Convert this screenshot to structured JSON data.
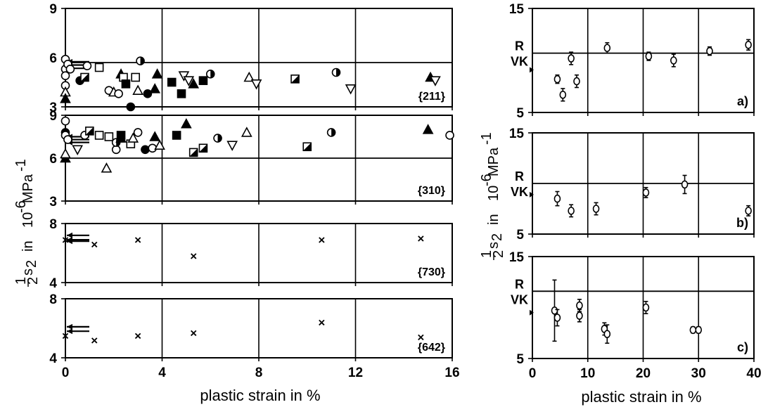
{
  "chart_data": [
    {
      "id": "211",
      "type": "scatter",
      "annotation": "{211}",
      "xlim": [
        0,
        16
      ],
      "ylim": [
        3,
        9
      ],
      "xticks": [
        "0",
        "4",
        "8",
        "12",
        "16"
      ],
      "yticks": [
        "3",
        "6",
        "9"
      ],
      "grid_x": true,
      "ref_line": 5.7,
      "ref_arrows": [
        5.75,
        5.55,
        5.35
      ],
      "points": [
        {
          "x": 0.0,
          "y": 5.9,
          "m": "circle"
        },
        {
          "x": 0.0,
          "y": 5.3,
          "m": "circle"
        },
        {
          "x": 0.0,
          "y": 4.9,
          "m": "circle"
        },
        {
          "x": 0.0,
          "y": 4.3,
          "m": "circle"
        },
        {
          "x": 0.0,
          "y": 3.9,
          "m": "tri-open"
        },
        {
          "x": 0.0,
          "y": 3.5,
          "m": "tri-filled"
        },
        {
          "x": 0.1,
          "y": 5.6,
          "m": "circle"
        },
        {
          "x": 0.2,
          "y": 5.3,
          "m": "circle"
        },
        {
          "x": 0.9,
          "y": 5.5,
          "m": "circle"
        },
        {
          "x": 0.6,
          "y": 4.6,
          "m": "circle-filled"
        },
        {
          "x": 0.8,
          "y": 4.8,
          "m": "sq-half"
        },
        {
          "x": 1.4,
          "y": 5.4,
          "m": "square"
        },
        {
          "x": 1.8,
          "y": 4.0,
          "m": "circle"
        },
        {
          "x": 2.0,
          "y": 3.9,
          "m": "tri-open"
        },
        {
          "x": 2.2,
          "y": 3.8,
          "m": "circle"
        },
        {
          "x": 2.3,
          "y": 5.0,
          "m": "tri-filled"
        },
        {
          "x": 2.4,
          "y": 4.8,
          "m": "square"
        },
        {
          "x": 2.5,
          "y": 4.4,
          "m": "sq-filled"
        },
        {
          "x": 2.7,
          "y": 3.0,
          "m": "circle-filled"
        },
        {
          "x": 2.9,
          "y": 4.8,
          "m": "square"
        },
        {
          "x": 3.0,
          "y": 4.0,
          "m": "tri-open"
        },
        {
          "x": 3.1,
          "y": 5.8,
          "m": "circle-half"
        },
        {
          "x": 3.4,
          "y": 3.8,
          "m": "circle-filled"
        },
        {
          "x": 3.7,
          "y": 4.1,
          "m": "tri-filled"
        },
        {
          "x": 3.8,
          "y": 5.0,
          "m": "tri-filled"
        },
        {
          "x": 4.4,
          "y": 4.5,
          "m": "sq-filled"
        },
        {
          "x": 4.9,
          "y": 4.9,
          "m": "tri-down"
        },
        {
          "x": 4.8,
          "y": 3.8,
          "m": "sq-filled"
        },
        {
          "x": 5.1,
          "y": 4.6,
          "m": "tri-down"
        },
        {
          "x": 5.3,
          "y": 4.4,
          "m": "tri-filled"
        },
        {
          "x": 5.7,
          "y": 4.6,
          "m": "sq-filled"
        },
        {
          "x": 6.0,
          "y": 5.0,
          "m": "circle-half"
        },
        {
          "x": 7.6,
          "y": 4.8,
          "m": "tri-open"
        },
        {
          "x": 7.9,
          "y": 4.4,
          "m": "tri-down"
        },
        {
          "x": 9.5,
          "y": 4.7,
          "m": "sq-half"
        },
        {
          "x": 11.2,
          "y": 5.1,
          "m": "circle-half"
        },
        {
          "x": 11.8,
          "y": 4.1,
          "m": "tri-down"
        },
        {
          "x": 15.1,
          "y": 4.8,
          "m": "tri-filled"
        },
        {
          "x": 15.3,
          "y": 4.6,
          "m": "tri-down"
        }
      ]
    },
    {
      "id": "310",
      "type": "scatter",
      "annotation": "{310}",
      "xlim": [
        0,
        16
      ],
      "ylim": [
        3,
        9
      ],
      "xticks": [
        "0",
        "4",
        "8",
        "12",
        "16"
      ],
      "yticks": [
        "3",
        "6",
        "9"
      ],
      "grid_x": true,
      "ref_line": 6.0,
      "ref_arrows": [
        7.5,
        7.3,
        7.1
      ],
      "points": [
        {
          "x": 0.0,
          "y": 8.6,
          "m": "circle"
        },
        {
          "x": 0.0,
          "y": 7.8,
          "m": "circle-filled"
        },
        {
          "x": 0.0,
          "y": 7.6,
          "m": "circle"
        },
        {
          "x": 0.0,
          "y": 6.0,
          "m": "tri-filled"
        },
        {
          "x": 0.0,
          "y": 6.3,
          "m": "tri-open"
        },
        {
          "x": 0.1,
          "y": 7.3,
          "m": "circle"
        },
        {
          "x": 0.5,
          "y": 6.6,
          "m": "tri-down"
        },
        {
          "x": 0.8,
          "y": 7.6,
          "m": "circle"
        },
        {
          "x": 1.0,
          "y": 7.9,
          "m": "sq-half"
        },
        {
          "x": 1.4,
          "y": 7.6,
          "m": "square"
        },
        {
          "x": 1.7,
          "y": 5.3,
          "m": "tri-open"
        },
        {
          "x": 1.8,
          "y": 7.5,
          "m": "square"
        },
        {
          "x": 2.1,
          "y": 6.6,
          "m": "circle"
        },
        {
          "x": 2.1,
          "y": 7.1,
          "m": "circle-half"
        },
        {
          "x": 2.3,
          "y": 7.4,
          "m": "tri-filled"
        },
        {
          "x": 2.3,
          "y": 7.6,
          "m": "sq-filled"
        },
        {
          "x": 2.7,
          "y": 7.0,
          "m": "square"
        },
        {
          "x": 2.8,
          "y": 7.4,
          "m": "tri-open"
        },
        {
          "x": 3.0,
          "y": 7.8,
          "m": "circle"
        },
        {
          "x": 3.3,
          "y": 6.6,
          "m": "circle-filled"
        },
        {
          "x": 3.6,
          "y": 6.7,
          "m": "circle"
        },
        {
          "x": 3.7,
          "y": 7.5,
          "m": "tri-filled"
        },
        {
          "x": 3.9,
          "y": 6.9,
          "m": "tri-open"
        },
        {
          "x": 4.6,
          "y": 7.6,
          "m": "sq-filled"
        },
        {
          "x": 5.0,
          "y": 8.4,
          "m": "tri-filled"
        },
        {
          "x": 5.3,
          "y": 6.4,
          "m": "sq-half"
        },
        {
          "x": 5.7,
          "y": 6.7,
          "m": "sq-half"
        },
        {
          "x": 6.3,
          "y": 7.4,
          "m": "circle-half"
        },
        {
          "x": 6.9,
          "y": 6.9,
          "m": "tri-down"
        },
        {
          "x": 7.5,
          "y": 7.8,
          "m": "tri-open"
        },
        {
          "x": 10.0,
          "y": 6.8,
          "m": "sq-half"
        },
        {
          "x": 11.0,
          "y": 7.8,
          "m": "circle-half"
        },
        {
          "x": 15.0,
          "y": 8.0,
          "m": "tri-filled"
        },
        {
          "x": 15.9,
          "y": 7.6,
          "m": "circle"
        }
      ]
    },
    {
      "id": "730",
      "type": "scatter",
      "annotation": "{730}",
      "xlim": [
        0,
        16
      ],
      "ylim": [
        4,
        8
      ],
      "xticks": [
        "0",
        "4",
        "8",
        "12",
        "16"
      ],
      "yticks": [
        "4",
        "8"
      ],
      "grid_x": true,
      "ref_arrows": [
        7.2,
        6.9,
        6.8
      ],
      "points": [
        {
          "x": 0.0,
          "y": 6.9,
          "m": "x"
        },
        {
          "x": 1.2,
          "y": 6.6,
          "m": "x"
        },
        {
          "x": 3.0,
          "y": 6.9,
          "m": "x"
        },
        {
          "x": 5.3,
          "y": 5.8,
          "m": "x"
        },
        {
          "x": 10.6,
          "y": 6.9,
          "m": "x"
        },
        {
          "x": 14.7,
          "y": 7.0,
          "m": "x"
        }
      ]
    },
    {
      "id": "642",
      "type": "scatter",
      "annotation": "{642}",
      "xlim": [
        0,
        16
      ],
      "ylim": [
        4,
        8
      ],
      "xticks": [
        "0",
        "4",
        "8",
        "12",
        "16"
      ],
      "yticks": [
        "4",
        "8"
      ],
      "grid_x": true,
      "ref_arrows": [
        6.1,
        5.8
      ],
      "points": [
        {
          "x": 0.0,
          "y": 5.5,
          "m": "x"
        },
        {
          "x": 1.2,
          "y": 5.2,
          "m": "x"
        },
        {
          "x": 3.0,
          "y": 5.5,
          "m": "x"
        },
        {
          "x": 5.3,
          "y": 5.7,
          "m": "x"
        },
        {
          "x": 10.6,
          "y": 6.4,
          "m": "x"
        },
        {
          "x": 14.7,
          "y": 5.4,
          "m": "x"
        }
      ]
    },
    {
      "id": "a",
      "type": "scatter",
      "annotation": "a)",
      "xlim": [
        0,
        40
      ],
      "ylim": [
        5,
        15
      ],
      "xticks": [
        "0",
        "10",
        "20",
        "30",
        "40"
      ],
      "yticks": [
        "5",
        "15"
      ],
      "grid_x": true,
      "ref_line": 10.7,
      "ref_left_labels": [
        "R",
        "VK"
      ],
      "ref_left_value": 9.1,
      "points": [
        {
          "x": 4.5,
          "y": 8.2,
          "err": 0.4
        },
        {
          "x": 5.5,
          "y": 6.7,
          "err": 0.6
        },
        {
          "x": 7.0,
          "y": 10.2,
          "err": 0.6
        },
        {
          "x": 8.0,
          "y": 8.0,
          "err": 0.6
        },
        {
          "x": 13.5,
          "y": 11.2,
          "err": 0.5
        },
        {
          "x": 21.0,
          "y": 10.4,
          "err": 0.4
        },
        {
          "x": 25.5,
          "y": 10.0,
          "err": 0.6
        },
        {
          "x": 32.0,
          "y": 10.9,
          "err": 0.4
        },
        {
          "x": 39.0,
          "y": 11.5,
          "err": 0.5
        }
      ]
    },
    {
      "id": "b",
      "type": "scatter",
      "annotation": "b)",
      "xlim": [
        0,
        40
      ],
      "ylim": [
        5,
        15
      ],
      "xticks": [
        "0",
        "10",
        "20",
        "30",
        "40"
      ],
      "yticks": [
        "5",
        "15"
      ],
      "grid_x": true,
      "ref_line": 10.0,
      "ref_left_labels": [
        "R",
        "VK"
      ],
      "ref_left_value": 8.9,
      "points": [
        {
          "x": 4.5,
          "y": 8.5,
          "err": 0.7
        },
        {
          "x": 7.0,
          "y": 7.3,
          "err": 0.6
        },
        {
          "x": 11.5,
          "y": 7.5,
          "err": 0.6
        },
        {
          "x": 20.5,
          "y": 9.1,
          "err": 0.5
        },
        {
          "x": 27.5,
          "y": 9.9,
          "err": 0.9
        },
        {
          "x": 39.0,
          "y": 7.3,
          "err": 0.5
        }
      ]
    },
    {
      "id": "c",
      "type": "scatter",
      "annotation": "c)",
      "xlim": [
        0,
        40
      ],
      "ylim": [
        5,
        15
      ],
      "xticks": [
        "0",
        "10",
        "20",
        "30",
        "40"
      ],
      "yticks": [
        "5",
        "15"
      ],
      "grid_x": true,
      "ref_line": 11.6,
      "ref_left_labels": [
        "R",
        "VK"
      ],
      "ref_left_value": 9.5,
      "points": [
        {
          "x": 4.0,
          "y": 9.7,
          "err": 3.0
        },
        {
          "x": 4.5,
          "y": 9.0,
          "err": 0.8
        },
        {
          "x": 8.5,
          "y": 10.2,
          "err": 0.6
        },
        {
          "x": 8.5,
          "y": 9.2,
          "err": 0.6
        },
        {
          "x": 13.0,
          "y": 7.9,
          "err": 0.6
        },
        {
          "x": 13.5,
          "y": 7.4,
          "err": 0.9
        },
        {
          "x": 20.5,
          "y": 10.0,
          "err": 0.6
        },
        {
          "x": 29.0,
          "y": 7.8,
          "err": 0.3
        },
        {
          "x": 30.0,
          "y": 7.8,
          "err": 0.3
        }
      ]
    }
  ],
  "labels": {
    "left_xlabel": "plastic strain in %",
    "right_xlabel": "plastic strain in %",
    "ylabel_half_num": "1",
    "ylabel_half_den": "2",
    "ylabel_s": "s",
    "ylabel_sub": "2",
    "ylabel_in": "in",
    "ylabel_unit_base": "10",
    "ylabel_unit_exp": "-6",
    "ylabel_unit_rest": "MPa",
    "ylabel_unit_exp2": "-1"
  }
}
